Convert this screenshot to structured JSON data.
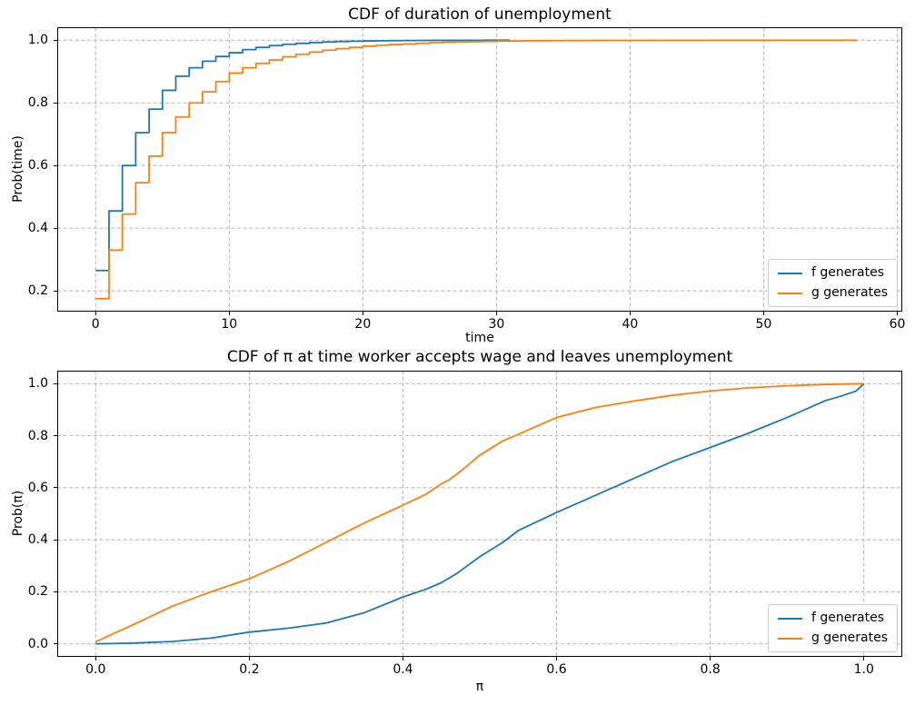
{
  "figure": {
    "background": "#ffffff",
    "grid_color": "#b0b0b0",
    "spine_color": "#000000",
    "text_color": "#000000",
    "legend_border_color": "#cccccc"
  },
  "chart_data": [
    {
      "id": "top",
      "type": "step",
      "title": "CDF of duration of unemployment",
      "xlabel": "time",
      "ylabel": "Prob(time)",
      "xlim": [
        -2.875,
        60.375
      ],
      "ylim": [
        0.1337,
        1.0413
      ],
      "xticks": [
        0,
        10,
        20,
        30,
        40,
        50,
        60
      ],
      "xtick_labels": [
        "0",
        "10",
        "20",
        "30",
        "40",
        "50",
        "60"
      ],
      "yticks": [
        0.2,
        0.4,
        0.6,
        0.8,
        1.0
      ],
      "ytick_labels": [
        "0.2",
        "0.4",
        "0.6",
        "0.8",
        "1.0"
      ],
      "grid": "dashed",
      "legend_position": "lower right",
      "series": [
        {
          "name": "f generates",
          "color": "#1f77b4",
          "x0": 0,
          "dx": 1,
          "values": [
            0.265,
            0.455,
            0.6,
            0.705,
            0.78,
            0.84,
            0.885,
            0.912,
            0.933,
            0.948,
            0.96,
            0.97,
            0.977,
            0.983,
            0.987,
            0.99,
            0.9925,
            0.9945,
            0.9958,
            0.9968,
            0.9976,
            0.9982,
            0.9986,
            0.9989,
            0.9992,
            0.9994,
            0.9995,
            0.9996,
            0.9997,
            0.9998,
            0.9999,
            1.0
          ]
        },
        {
          "name": "g generates",
          "color": "#ff7f0e",
          "x0": 0,
          "dx": 1,
          "values": [
            0.175,
            0.33,
            0.445,
            0.545,
            0.63,
            0.705,
            0.755,
            0.8,
            0.835,
            0.868,
            0.895,
            0.912,
            0.926,
            0.937,
            0.947,
            0.955,
            0.962,
            0.968,
            0.973,
            0.977,
            0.981,
            0.984,
            0.986,
            0.988,
            0.99,
            0.992,
            0.9935,
            0.9945,
            0.9955,
            0.996,
            0.997,
            0.9975,
            0.998,
            0.9983,
            0.9986,
            0.9988,
            0.999,
            0.9991,
            0.9992,
            0.9993,
            0.9994,
            0.9995,
            0.99955,
            0.9996,
            0.99965,
            0.9997,
            0.99975,
            0.9998,
            0.99982,
            0.99985,
            0.99987,
            0.9999,
            0.99992,
            0.99993,
            0.99995,
            0.99996,
            0.99998,
            1.0
          ]
        }
      ]
    },
    {
      "id": "bottom",
      "type": "line",
      "title": "CDF of π at time worker accepts wage and leaves unemployment",
      "xlabel": "π",
      "ylabel": "Prob(π)",
      "xlim": [
        -0.05,
        1.05
      ],
      "ylim": [
        -0.05,
        1.05
      ],
      "xticks": [
        0.0,
        0.2,
        0.4,
        0.6,
        0.8,
        1.0
      ],
      "xtick_labels": [
        "0.0",
        "0.2",
        "0.4",
        "0.6",
        "0.8",
        "1.0"
      ],
      "yticks": [
        0.0,
        0.2,
        0.4,
        0.6,
        0.8,
        1.0
      ],
      "ytick_labels": [
        "0.0",
        "0.2",
        "0.4",
        "0.6",
        "0.8",
        "1.0"
      ],
      "grid": "dashed",
      "legend_position": "lower right",
      "series": [
        {
          "name": "f generates",
          "color": "#1f77b4",
          "points": [
            [
              0.0,
              0.0
            ],
            [
              0.05,
              0.003
            ],
            [
              0.1,
              0.009
            ],
            [
              0.15,
              0.022
            ],
            [
              0.2,
              0.045
            ],
            [
              0.25,
              0.06
            ],
            [
              0.3,
              0.08
            ],
            [
              0.35,
              0.12
            ],
            [
              0.4,
              0.18
            ],
            [
              0.43,
              0.21
            ],
            [
              0.45,
              0.235
            ],
            [
              0.47,
              0.27
            ],
            [
              0.5,
              0.335
            ],
            [
              0.53,
              0.39
            ],
            [
              0.55,
              0.435
            ],
            [
              0.6,
              0.505
            ],
            [
              0.65,
              0.57
            ],
            [
              0.7,
              0.635
            ],
            [
              0.75,
              0.7
            ],
            [
              0.8,
              0.755
            ],
            [
              0.85,
              0.81
            ],
            [
              0.9,
              0.87
            ],
            [
              0.95,
              0.935
            ],
            [
              0.97,
              0.952
            ],
            [
              0.99,
              0.972
            ],
            [
              1.0,
              1.0
            ]
          ]
        },
        {
          "name": "g generates",
          "color": "#ff7f0e",
          "points": [
            [
              0.0,
              0.008
            ],
            [
              0.05,
              0.075
            ],
            [
              0.1,
              0.145
            ],
            [
              0.15,
              0.2
            ],
            [
              0.2,
              0.25
            ],
            [
              0.25,
              0.315
            ],
            [
              0.3,
              0.39
            ],
            [
              0.35,
              0.465
            ],
            [
              0.4,
              0.533
            ],
            [
              0.43,
              0.575
            ],
            [
              0.45,
              0.615
            ],
            [
              0.46,
              0.63
            ],
            [
              0.48,
              0.675
            ],
            [
              0.5,
              0.725
            ],
            [
              0.53,
              0.78
            ],
            [
              0.55,
              0.805
            ],
            [
              0.6,
              0.87
            ],
            [
              0.65,
              0.908
            ],
            [
              0.7,
              0.933
            ],
            [
              0.75,
              0.955
            ],
            [
              0.8,
              0.972
            ],
            [
              0.85,
              0.984
            ],
            [
              0.9,
              0.992
            ],
            [
              0.95,
              0.997
            ],
            [
              1.0,
              1.0
            ]
          ]
        }
      ]
    }
  ]
}
